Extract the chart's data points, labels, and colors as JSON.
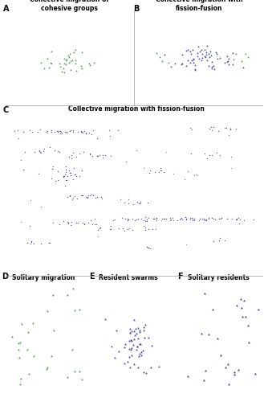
{
  "green": "#4a9a4a",
  "blue": "#4444aa",
  "bg": "#ffffff",
  "seed": 7,
  "panels": {
    "A": {
      "label": "A",
      "title": "Collective migration of\ncohesive groups"
    },
    "B": {
      "label": "B",
      "title": "Collective migration with\nfission-fusion"
    },
    "C": {
      "label": "C",
      "title": "Collective migration with fission-fusion"
    },
    "D": {
      "label": "D",
      "title": "Solitary migration"
    },
    "E": {
      "label": "E",
      "title": "Resident swarms"
    },
    "F": {
      "label": "F",
      "title": "Solitary residents"
    }
  },
  "label_fontsize": 7,
  "title_fontsize": 5.5,
  "title_fontweight": "bold"
}
